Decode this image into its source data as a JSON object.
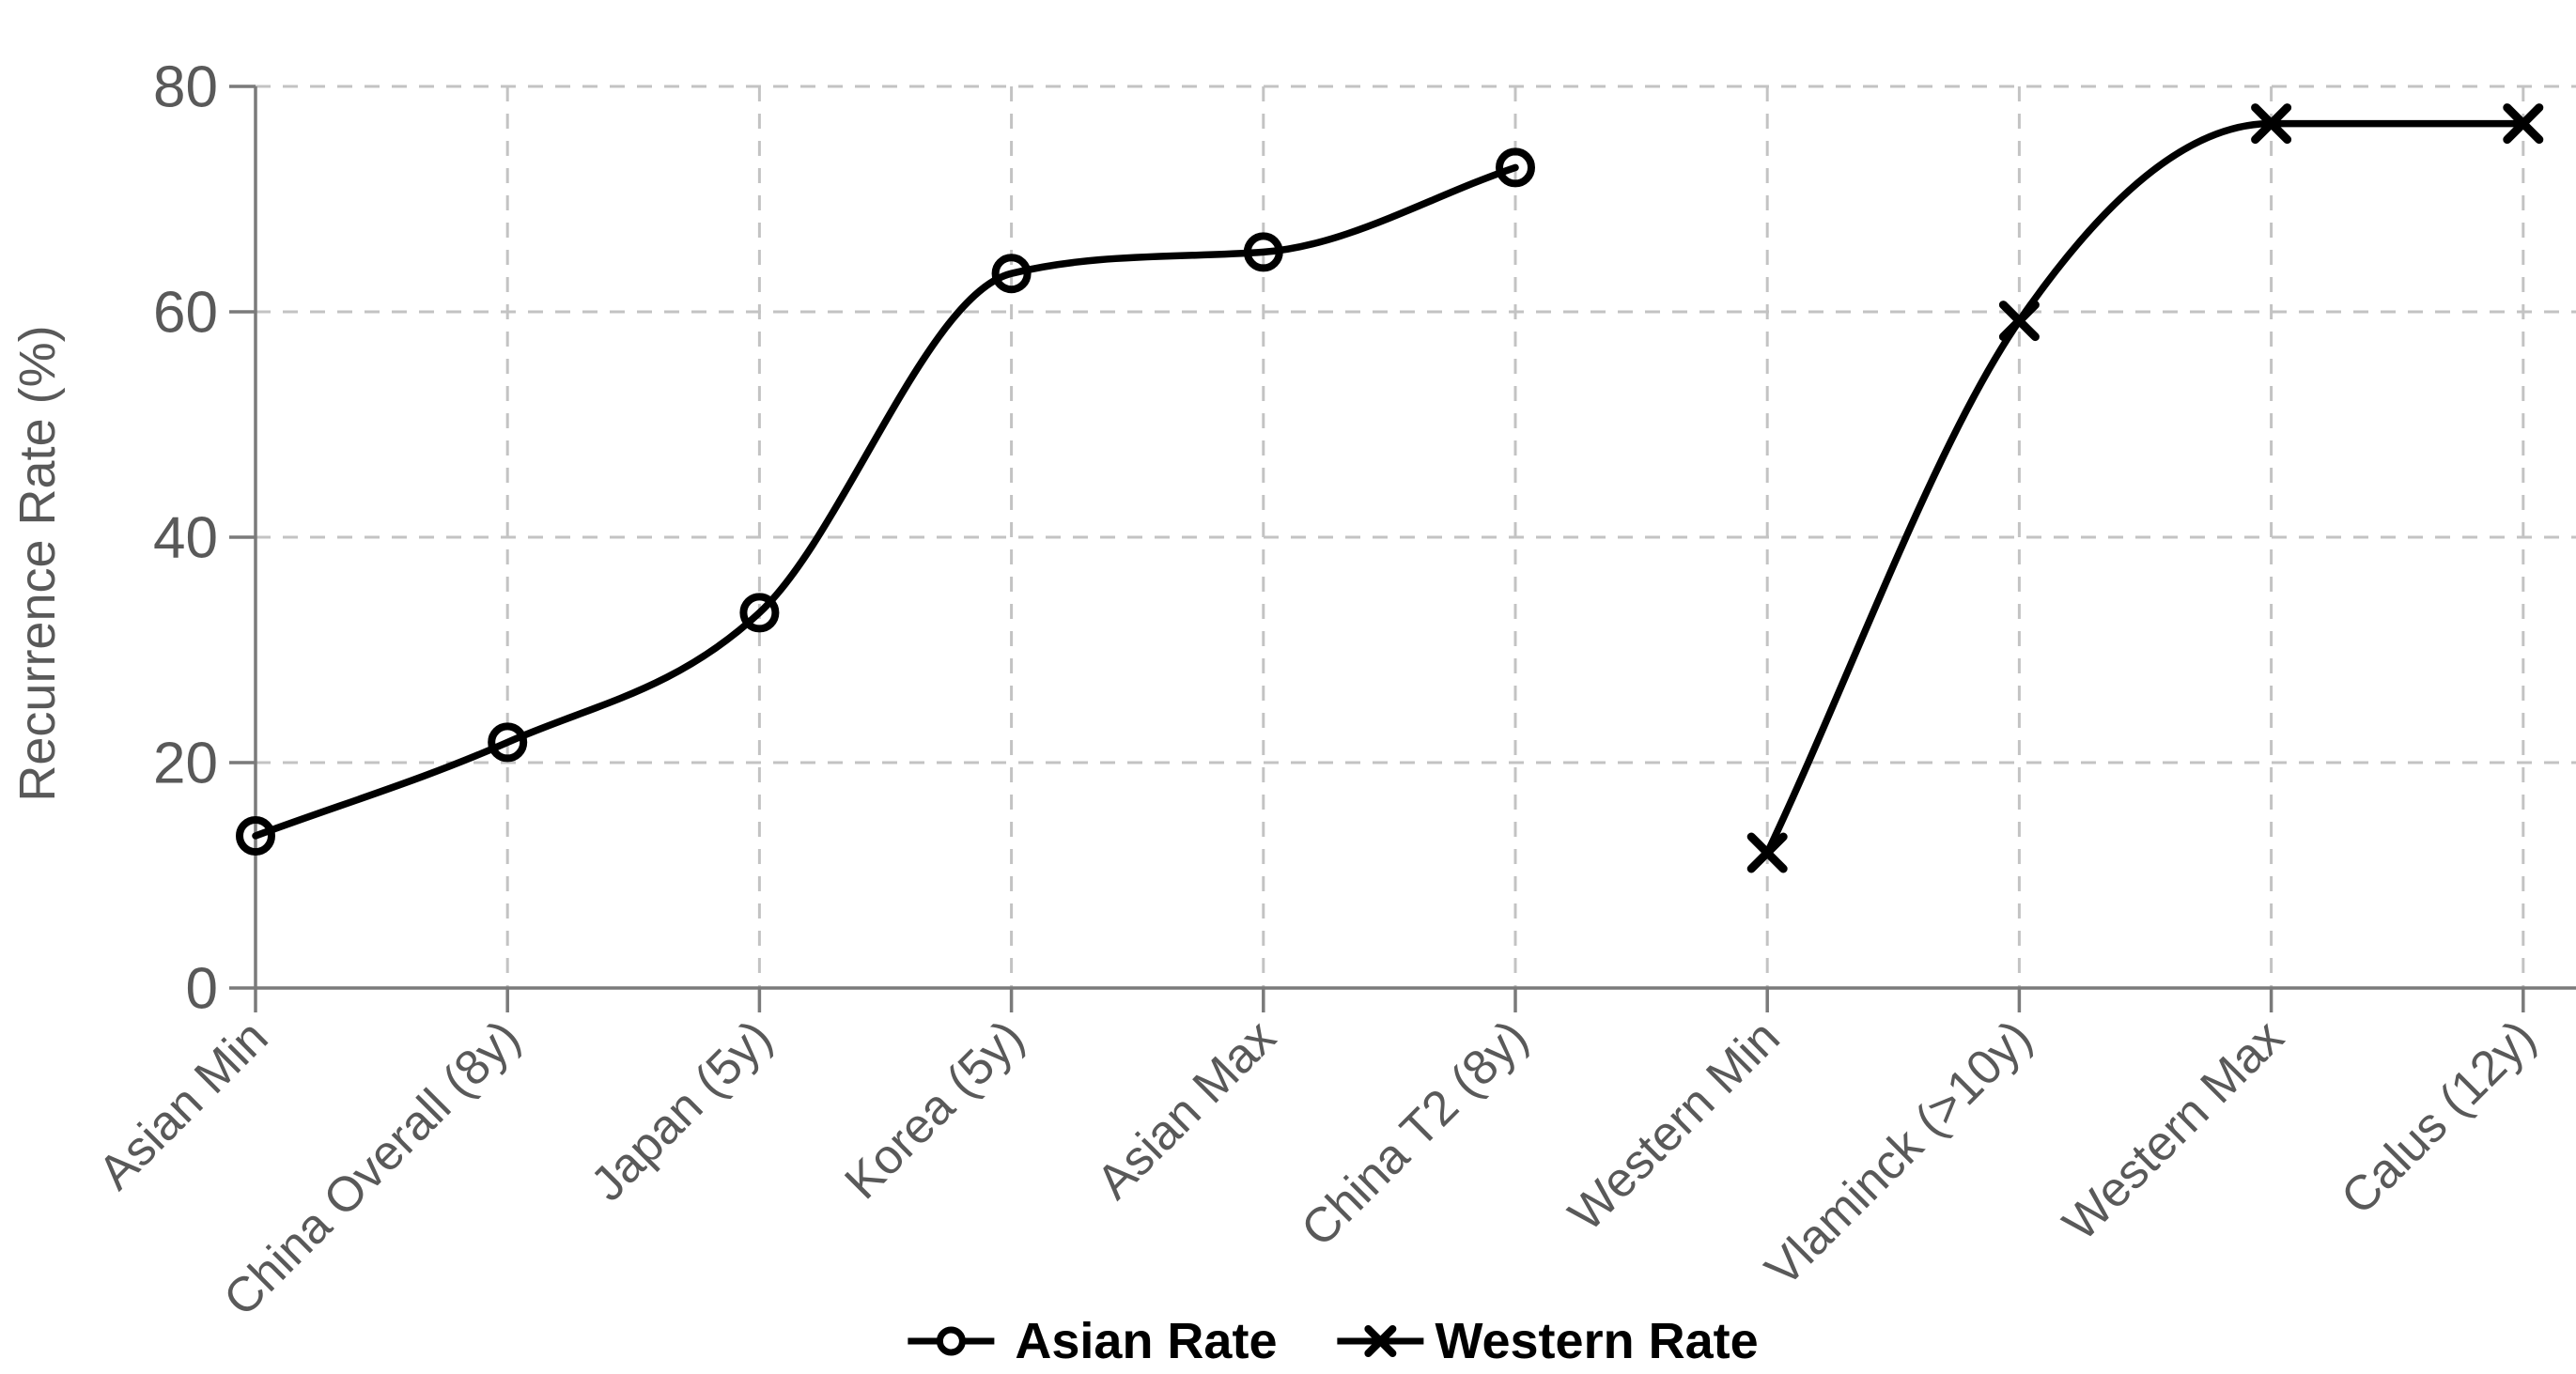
{
  "chart_data": {
    "type": "line",
    "title": "",
    "xlabel": "",
    "ylabel": "Recurrence Rate (%)",
    "ylim": [
      0,
      80
    ],
    "yticks": [
      0,
      20,
      40,
      60,
      80
    ],
    "grid": "dashed-horizontal-and-vertical",
    "legend_position": "bottom-center",
    "categories": [
      "Asian Min",
      "China Overall (8y)",
      "Japan (5y)",
      "Korea (5y)",
      "Asian Max",
      "China T2 (8y)",
      "Western Min",
      "Vlaminck (>10y)",
      "Western Max",
      "Calus (12y)"
    ],
    "series": [
      {
        "name": "Asian Rate",
        "marker": "circle",
        "line_style": "smooth",
        "x_indices": [
          0,
          1,
          2,
          3,
          4,
          5
        ],
        "values": [
          13.5,
          21.8,
          33.3,
          63.4,
          65.3,
          72.8
        ]
      },
      {
        "name": "Western Rate",
        "marker": "x",
        "line_style": "smooth",
        "x_indices": [
          6,
          7,
          8,
          9
        ],
        "values": [
          12.0,
          59.2,
          76.7,
          76.7
        ]
      }
    ]
  },
  "legend": {
    "items": [
      {
        "icon": "circle-marker-icon",
        "label": "Asian Rate"
      },
      {
        "icon": "x-marker-icon",
        "label": "Western Rate"
      }
    ]
  },
  "colors": {
    "background": "#ffffff",
    "series_line": "#000000",
    "axis": "#7a7a7a",
    "gridline": "#c3c3c3",
    "tick_text": "#595959",
    "legend_text": "#000000"
  }
}
